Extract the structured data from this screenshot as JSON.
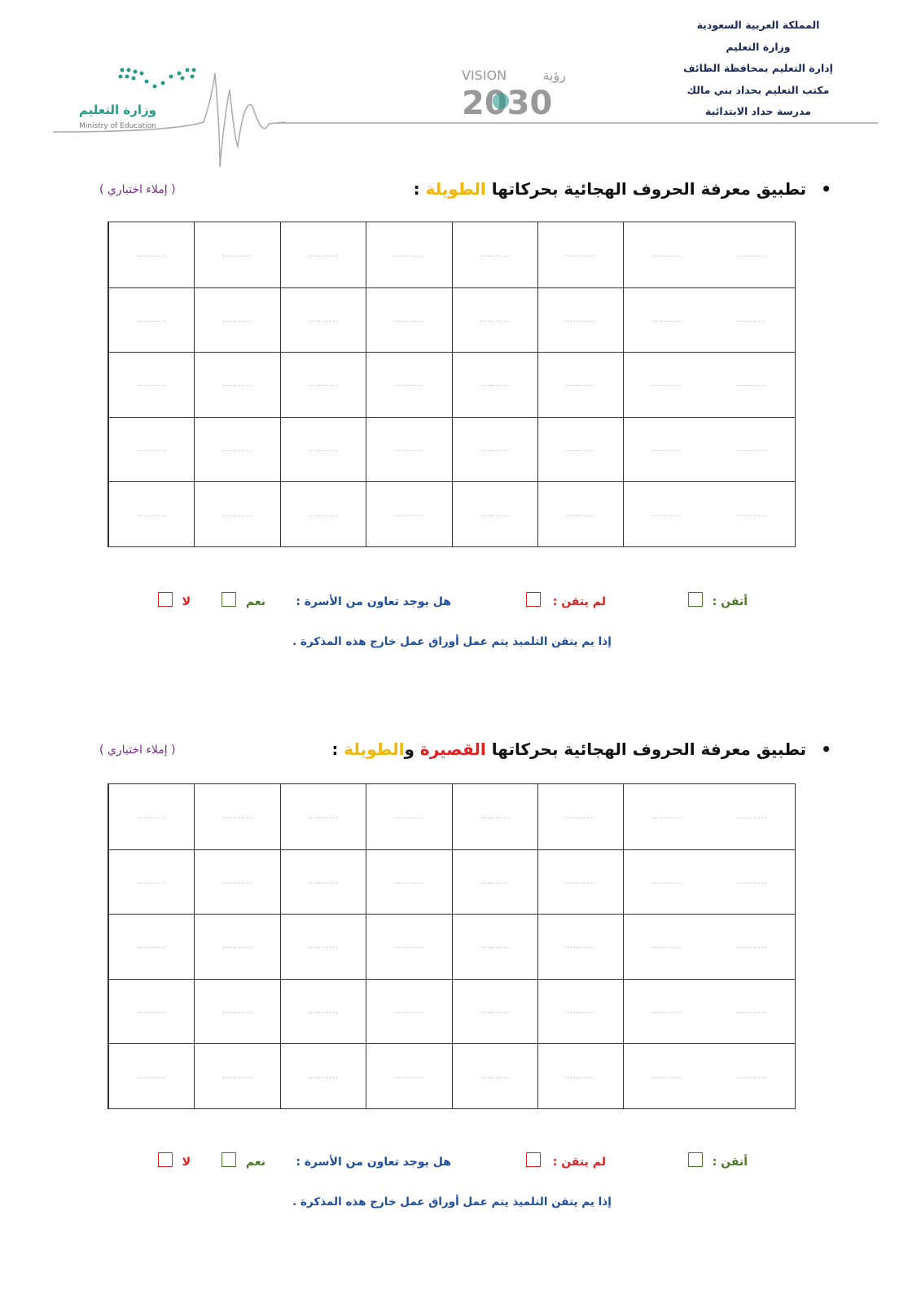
{
  "header": {
    "lines": [
      "المملكة العربية السعودية",
      "وزارة التعليم",
      "إدارة التعليم بمحافظة الطائف",
      "مكتب التعليم بحداد بني مالك",
      "مدرسة حداد الابتدائية"
    ]
  },
  "logos": {
    "ministry_ar": "وزارة التعليم",
    "ministry_en": "Ministry of Education",
    "vision_en": "VISION",
    "vision_ar": "رؤية",
    "vision_year": "2030"
  },
  "colors": {
    "highlight_long": "#f2b705",
    "highlight_short": "#e02020",
    "tag": "#7a2a8a",
    "mastered": "#4a7a2a",
    "not_mastered": "#e02020",
    "info": "#1f4e9a"
  },
  "cell_placeholder": "………..",
  "sections": [
    {
      "title_prefix": "تطبيق معرفة الحروف الهجائية بحركاتها ",
      "title_short": "",
      "title_joiner": "",
      "title_long": "الطويلة",
      "title_suffix": " :",
      "tag": "( إملاء اختباري )",
      "eval": {
        "mastered": "أتقن :",
        "not_mastered": "لم يتقن :",
        "family_q": "هل يوجد تعاون من الأسرة :",
        "yes": "نعم",
        "no": "لا"
      },
      "note": "إذا يم يتقن التلميذ يتم عمل أوراق عمل خارج هذه المذكرة ."
    },
    {
      "title_prefix": "تطبيق معرفة الحروف الهجائية بحركاتها ",
      "title_short": "القصيرة",
      "title_joiner": " و",
      "title_long": "الطويلة",
      "title_suffix": " :",
      "tag": "( إملاء اختباري )",
      "eval": {
        "mastered": "أتقن :",
        "not_mastered": "لم يتقن :",
        "family_q": "هل يوجد تعاون من الأسرة :",
        "yes": "نعم",
        "no": "لا"
      },
      "note": "إذا يم يتقن التلميذ يتم عمل أوراق عمل خارج هذه المذكرة ."
    }
  ]
}
